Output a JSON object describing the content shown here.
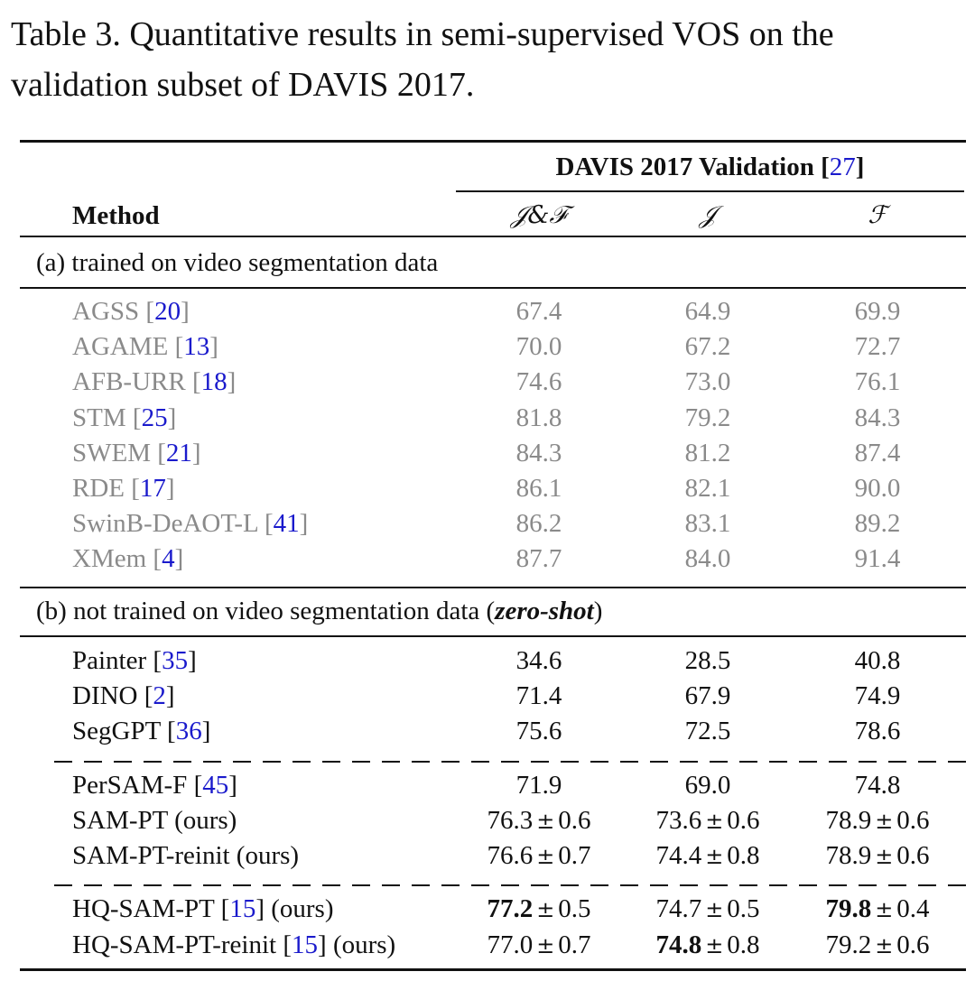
{
  "caption": "Table 3. Quantitative results in semi-supervised VOS on the validation subset of DAVIS 2017.",
  "header": {
    "group_title": "DAVIS 2017 Validation",
    "group_cite": "27",
    "method": "Method",
    "col_jf": "𝒥&ℱ",
    "col_j": "𝒥",
    "col_f": "ℱ"
  },
  "section_a": {
    "label": "(a) trained on video segmentation data"
  },
  "section_b": {
    "label_prefix": "(b) not trained on video segmentation data (",
    "label_em": "zero-shot",
    "label_suffix": ")"
  },
  "rows_a": [
    {
      "name": "AGSS",
      "cite": "20",
      "suffix": "",
      "jf": "67.4",
      "j": "64.9",
      "f": "69.9"
    },
    {
      "name": "AGAME",
      "cite": "13",
      "suffix": "",
      "jf": "70.0",
      "j": "67.2",
      "f": "72.7"
    },
    {
      "name": "AFB-URR",
      "cite": "18",
      "suffix": "",
      "jf": "74.6",
      "j": "73.0",
      "f": "76.1"
    },
    {
      "name": "STM",
      "cite": "25",
      "suffix": "",
      "jf": "81.8",
      "j": "79.2",
      "f": "84.3"
    },
    {
      "name": "SWEM",
      "cite": "21",
      "suffix": "",
      "jf": "84.3",
      "j": "81.2",
      "f": "87.4"
    },
    {
      "name": "RDE",
      "cite": "17",
      "suffix": "",
      "jf": "86.1",
      "j": "82.1",
      "f": "90.0"
    },
    {
      "name": "SwinB-DeAOT-L",
      "cite": "41",
      "suffix": "",
      "jf": "86.2",
      "j": "83.1",
      "f": "89.2"
    },
    {
      "name": "XMem",
      "cite": "4",
      "suffix": "",
      "jf": "87.7",
      "j": "84.0",
      "f": "91.4"
    }
  ],
  "rows_b1": [
    {
      "name": "Painter",
      "cite": "35",
      "suffix": "",
      "jf": "34.6",
      "j": "28.5",
      "f": "40.8"
    },
    {
      "name": "DINO",
      "cite": "2",
      "suffix": "",
      "jf": "71.4",
      "j": "67.9",
      "f": "74.9"
    },
    {
      "name": "SegGPT",
      "cite": "36",
      "suffix": "",
      "jf": "75.6",
      "j": "72.5",
      "f": "78.6"
    }
  ],
  "rows_b2": [
    {
      "name": "PerSAM-F",
      "cite": "45",
      "suffix": "",
      "jf": "71.9",
      "j": "69.0",
      "f": "74.8"
    },
    {
      "name": "SAM-PT (ours)",
      "cite": "",
      "suffix": "",
      "jf": "76.3",
      "jf_pm": "0.6",
      "j": "73.6",
      "j_pm": "0.6",
      "f": "78.9",
      "f_pm": "0.6"
    },
    {
      "name": "SAM-PT-reinit (ours)",
      "cite": "",
      "suffix": "",
      "jf": "76.6",
      "jf_pm": "0.7",
      "j": "74.4",
      "j_pm": "0.8",
      "f": "78.9",
      "f_pm": "0.6"
    }
  ],
  "rows_b3": [
    {
      "name": "HQ-SAM-PT",
      "cite": "15",
      "suffix": "(ours)",
      "jf": "77.2",
      "jf_pm": "0.5",
      "jf_bold": true,
      "j": "74.7",
      "j_pm": "0.5",
      "f": "79.8",
      "f_pm": "0.4",
      "f_bold": true
    },
    {
      "name": "HQ-SAM-PT-reinit",
      "cite": "15",
      "suffix": "(ours)",
      "jf": "77.0",
      "jf_pm": "0.7",
      "j": "74.8",
      "j_pm": "0.8",
      "j_bold": true,
      "f": "79.2",
      "f_pm": "0.6"
    }
  ],
  "pm_symbol": "±"
}
